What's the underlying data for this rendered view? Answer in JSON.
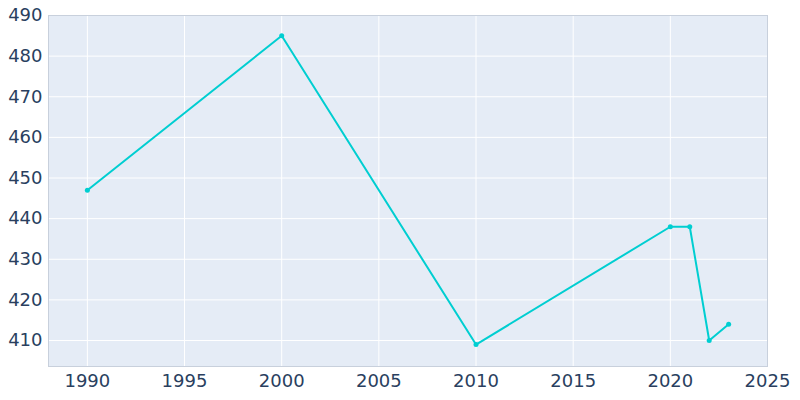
{
  "chart_data": {
    "type": "line",
    "x": [
      1990,
      2000,
      2010,
      2020,
      2021,
      2022,
      2023
    ],
    "values": [
      447,
      485,
      409,
      438,
      438,
      410,
      414
    ],
    "color": "#00ced1",
    "marker": "circle",
    "xlim": [
      1988,
      2025
    ],
    "xticks": [
      1990,
      1995,
      2000,
      2005,
      2010,
      2015,
      2020,
      2025
    ],
    "ylim": [
      403.6,
      490
    ],
    "yticks": [
      410,
      420,
      430,
      440,
      450,
      460,
      470,
      480,
      490
    ],
    "grid": true
  }
}
